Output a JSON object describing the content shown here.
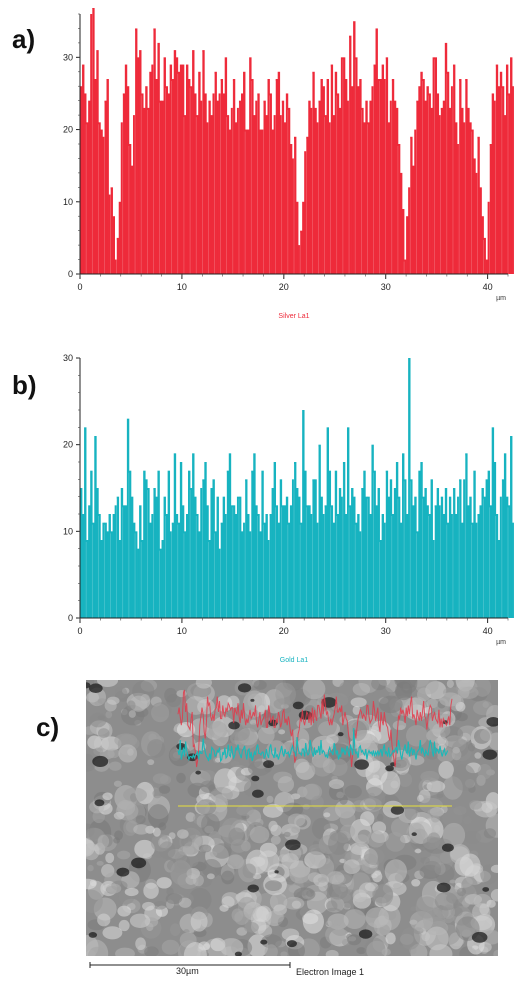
{
  "panels": {
    "a": "a)",
    "b": "b)",
    "c": "c)"
  },
  "chart_data": [
    {
      "type": "bar",
      "legend": "Silver La1",
      "unit": "µm",
      "color": "#ee2a3a",
      "xlim": [
        0,
        42
      ],
      "ylim": [
        0,
        36
      ],
      "xticks": [
        0,
        10,
        20,
        30,
        40
      ],
      "yticks": [
        0,
        10,
        20,
        30
      ],
      "x_step": 0.2,
      "values": [
        26,
        29,
        25,
        21,
        24,
        36,
        37,
        27,
        31,
        21,
        20,
        19,
        24,
        27,
        11,
        12,
        8,
        2,
        5,
        10,
        21,
        25,
        29,
        26,
        18,
        15,
        22,
        34,
        30,
        31,
        25,
        23,
        26,
        23,
        28,
        29,
        34,
        27,
        32,
        24,
        24,
        30,
        26,
        25,
        29,
        27,
        31,
        30,
        28,
        29,
        29,
        22,
        29,
        27,
        26,
        31,
        25,
        22,
        28,
        24,
        31,
        25,
        21,
        24,
        22,
        25,
        28,
        24,
        25,
        27,
        25,
        30,
        22,
        20,
        23,
        27,
        21,
        23,
        24,
        25,
        28,
        20,
        20,
        30,
        27,
        22,
        24,
        25,
        20,
        20,
        24,
        22,
        27,
        25,
        20,
        22,
        27,
        28,
        22,
        24,
        21,
        25,
        23,
        18,
        16,
        19,
        10,
        4,
        6,
        10,
        17,
        19,
        24,
        23,
        28,
        23,
        21,
        24,
        27,
        26,
        22,
        27,
        21,
        29,
        22,
        28,
        25,
        23,
        30,
        30,
        27,
        24,
        33,
        26,
        35,
        30,
        26,
        27,
        23,
        21,
        24,
        21,
        24,
        26,
        29,
        34,
        27,
        27,
        29,
        27,
        30,
        21,
        24,
        27,
        24,
        23,
        18,
        14,
        9,
        2,
        8,
        12,
        19,
        15,
        20,
        24,
        26,
        28,
        27,
        24,
        26,
        25,
        23,
        30,
        30,
        25,
        22,
        23,
        24,
        32,
        28,
        23,
        26,
        29,
        21,
        18,
        27,
        23,
        21,
        27,
        23,
        21,
        20,
        16,
        14,
        19,
        12,
        8,
        5,
        2,
        10,
        18,
        25,
        24,
        29,
        26,
        28,
        26,
        22,
        29,
        25,
        30,
        26,
        31,
        34,
        24,
        26,
        24,
        21,
        28,
        25,
        23,
        27,
        23,
        27,
        32,
        25,
        24,
        19,
        24,
        28,
        30,
        29,
        23,
        25,
        27,
        24,
        23,
        22,
        28,
        20,
        24,
        20,
        24,
        23,
        22,
        21,
        23,
        25,
        21,
        30,
        33
      ]
    },
    {
      "type": "bar",
      "legend": "Gold La1",
      "unit": "µm",
      "color": "#17b3c0",
      "xlim": [
        0,
        42
      ],
      "ylim": [
        0,
        30
      ],
      "xticks": [
        0,
        10,
        20,
        30,
        40
      ],
      "yticks": [
        0,
        10,
        20,
        30
      ],
      "x_step": 0.2,
      "values": [
        15,
        12,
        22,
        9,
        13,
        17,
        11,
        21,
        15,
        12,
        9,
        11,
        11,
        10,
        12,
        10,
        12,
        13,
        14,
        9,
        15,
        13,
        13,
        23,
        17,
        14,
        11,
        10,
        8,
        13,
        9,
        17,
        16,
        15,
        11,
        12,
        15,
        14,
        17,
        8,
        9,
        14,
        12,
        17,
        10,
        11,
        19,
        12,
        11,
        18,
        13,
        10,
        12,
        17,
        15,
        19,
        14,
        12,
        10,
        15,
        16,
        18,
        13,
        9,
        15,
        16,
        10,
        14,
        8,
        11,
        14,
        12,
        17,
        19,
        13,
        13,
        12,
        14,
        14,
        10,
        11,
        16,
        12,
        10,
        17,
        19,
        13,
        12,
        10,
        17,
        11,
        12,
        9,
        12,
        15,
        18,
        13,
        11,
        16,
        13,
        13,
        14,
        11,
        13,
        16,
        18,
        15,
        14,
        11,
        24,
        17,
        13,
        13,
        12,
        16,
        16,
        11,
        20,
        14,
        12,
        13,
        22,
        17,
        13,
        11,
        17,
        12,
        15,
        14,
        18,
        12,
        22,
        13,
        15,
        14,
        11,
        12,
        10,
        15,
        17,
        14,
        14,
        12,
        20,
        17,
        13,
        15,
        9,
        12,
        11,
        17,
        14,
        16,
        12,
        15,
        18,
        14,
        11,
        19,
        16,
        12,
        30,
        16,
        13,
        14,
        10,
        17,
        18,
        14,
        15,
        13,
        12,
        16,
        9,
        13,
        15,
        13,
        14,
        12,
        15,
        11,
        14,
        12,
        15,
        12,
        14,
        16,
        11,
        16,
        19,
        13,
        14,
        11,
        17,
        11,
        12,
        13,
        15,
        14,
        16,
        17,
        13,
        22,
        18,
        12,
        9,
        14,
        16,
        19,
        14,
        13,
        21,
        11,
        15,
        17,
        12,
        16,
        13,
        9,
        14,
        15,
        16,
        22,
        13,
        17,
        14,
        11,
        15,
        13,
        12,
        17,
        22,
        19,
        14,
        11,
        21,
        13,
        16,
        15,
        13,
        18,
        14,
        11,
        14,
        16,
        12,
        13,
        15
      ]
    }
  ],
  "sem": {
    "scale_label": "30µm",
    "caption": "Electron Image 1",
    "linescan_colors": {
      "silver": "#e23a4a",
      "gold": "#1bb8b8",
      "line": "#e6e03a"
    }
  }
}
